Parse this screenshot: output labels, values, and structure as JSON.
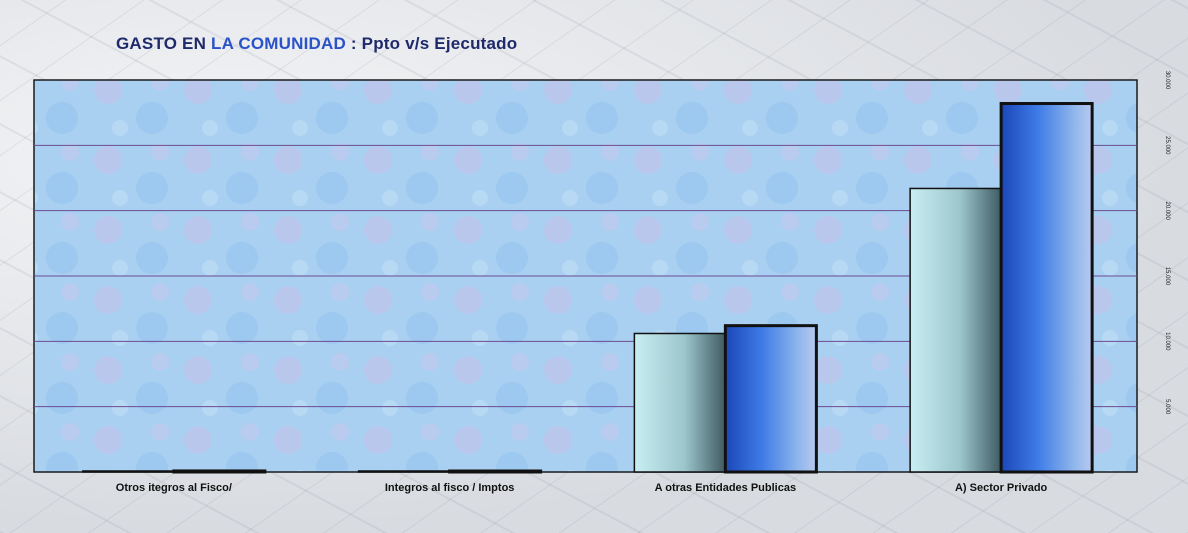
{
  "title": {
    "part1": "GASTO EN ",
    "part2": "LA COMUNIDAD",
    "part3": " : Ppto v/s Ejecutado"
  },
  "colors": {
    "title": "#1f2a6b",
    "title_accent": "#2a52c9",
    "plot_bg": "#a9d0f0",
    "gridline": "#6a4c93",
    "series_presupuesto": "#b3e0ea",
    "series_ejecutado": "#2f63d6"
  },
  "chart_data": {
    "type": "bar",
    "categories": [
      "Otros itegros al Fisco/",
      "Integros al fisco / Imptos",
      "A otras Entidades Publicas",
      "A) Sector Privado"
    ],
    "series": [
      {
        "values": [
          0,
          0,
          10600,
          21700
        ]
      },
      {
        "values": [
          80,
          60,
          11200,
          28200
        ]
      }
    ],
    "ylim": [
      0,
      30000
    ],
    "yticks": [
      0,
      5000,
      10000,
      15000,
      20000,
      25000,
      30000
    ],
    "ytick_labels": [
      "",
      "5.000",
      "10.000",
      "15.000",
      "20.000",
      "25.000",
      "30.000"
    ],
    "y_axis_position": "right",
    "grid": true,
    "legend": "none",
    "xlabel": "",
    "ylabel": ""
  }
}
